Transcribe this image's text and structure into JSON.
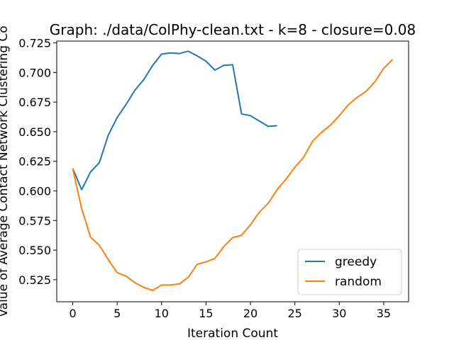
{
  "chart_data": {
    "type": "line",
    "title": "Graph: ./data/ColPhy-clean.txt - k=8 - closure=0.08",
    "xlabel": "Iteration Count",
    "ylabel": "Value of Average Contact Network Clustering Co",
    "xlim": [
      -1.8,
      37.8
    ],
    "ylim": [
      0.5064,
      0.7265
    ],
    "xticks": [
      0,
      5,
      10,
      15,
      20,
      25,
      30,
      35
    ],
    "yticks": [
      0.525,
      0.55,
      0.575,
      0.6,
      0.625,
      0.65,
      0.675,
      0.7,
      0.725
    ],
    "grid": false,
    "legend_position": "lower right",
    "series": [
      {
        "name": "greedy",
        "color": "#1f77b4",
        "x": [
          0,
          1,
          2,
          3,
          4,
          5,
          6,
          7,
          8,
          9,
          10,
          11,
          12,
          13,
          14,
          15,
          16,
          17,
          18,
          19,
          20,
          21,
          22,
          23
        ],
        "y": [
          0.619,
          0.601,
          0.616,
          0.624,
          0.647,
          0.662,
          0.673,
          0.685,
          0.694,
          0.706,
          0.7155,
          0.7165,
          0.716,
          0.718,
          0.714,
          0.7095,
          0.702,
          0.706,
          0.7065,
          0.665,
          0.6635,
          0.659,
          0.6545,
          0.655
        ]
      },
      {
        "name": "random",
        "color": "#ff7f0e",
        "x": [
          0,
          1,
          2,
          3,
          4,
          5,
          6,
          7,
          8,
          9,
          10,
          11,
          12,
          13,
          14,
          15,
          16,
          17,
          18,
          19,
          20,
          21,
          22,
          23,
          24,
          25,
          26,
          27,
          28,
          29,
          30,
          31,
          32,
          33,
          34,
          35,
          36
        ],
        "y": [
          0.619,
          0.585,
          0.561,
          0.554,
          0.542,
          0.531,
          0.528,
          0.5225,
          0.5185,
          0.516,
          0.5205,
          0.5205,
          0.5215,
          0.527,
          0.538,
          0.54,
          0.543,
          0.553,
          0.5605,
          0.5625,
          0.5715,
          0.582,
          0.5895,
          0.601,
          0.61,
          0.62,
          0.6285,
          0.642,
          0.6495,
          0.6555,
          0.6635,
          0.6725,
          0.679,
          0.684,
          0.692,
          0.7035,
          0.711
        ]
      }
    ]
  }
}
